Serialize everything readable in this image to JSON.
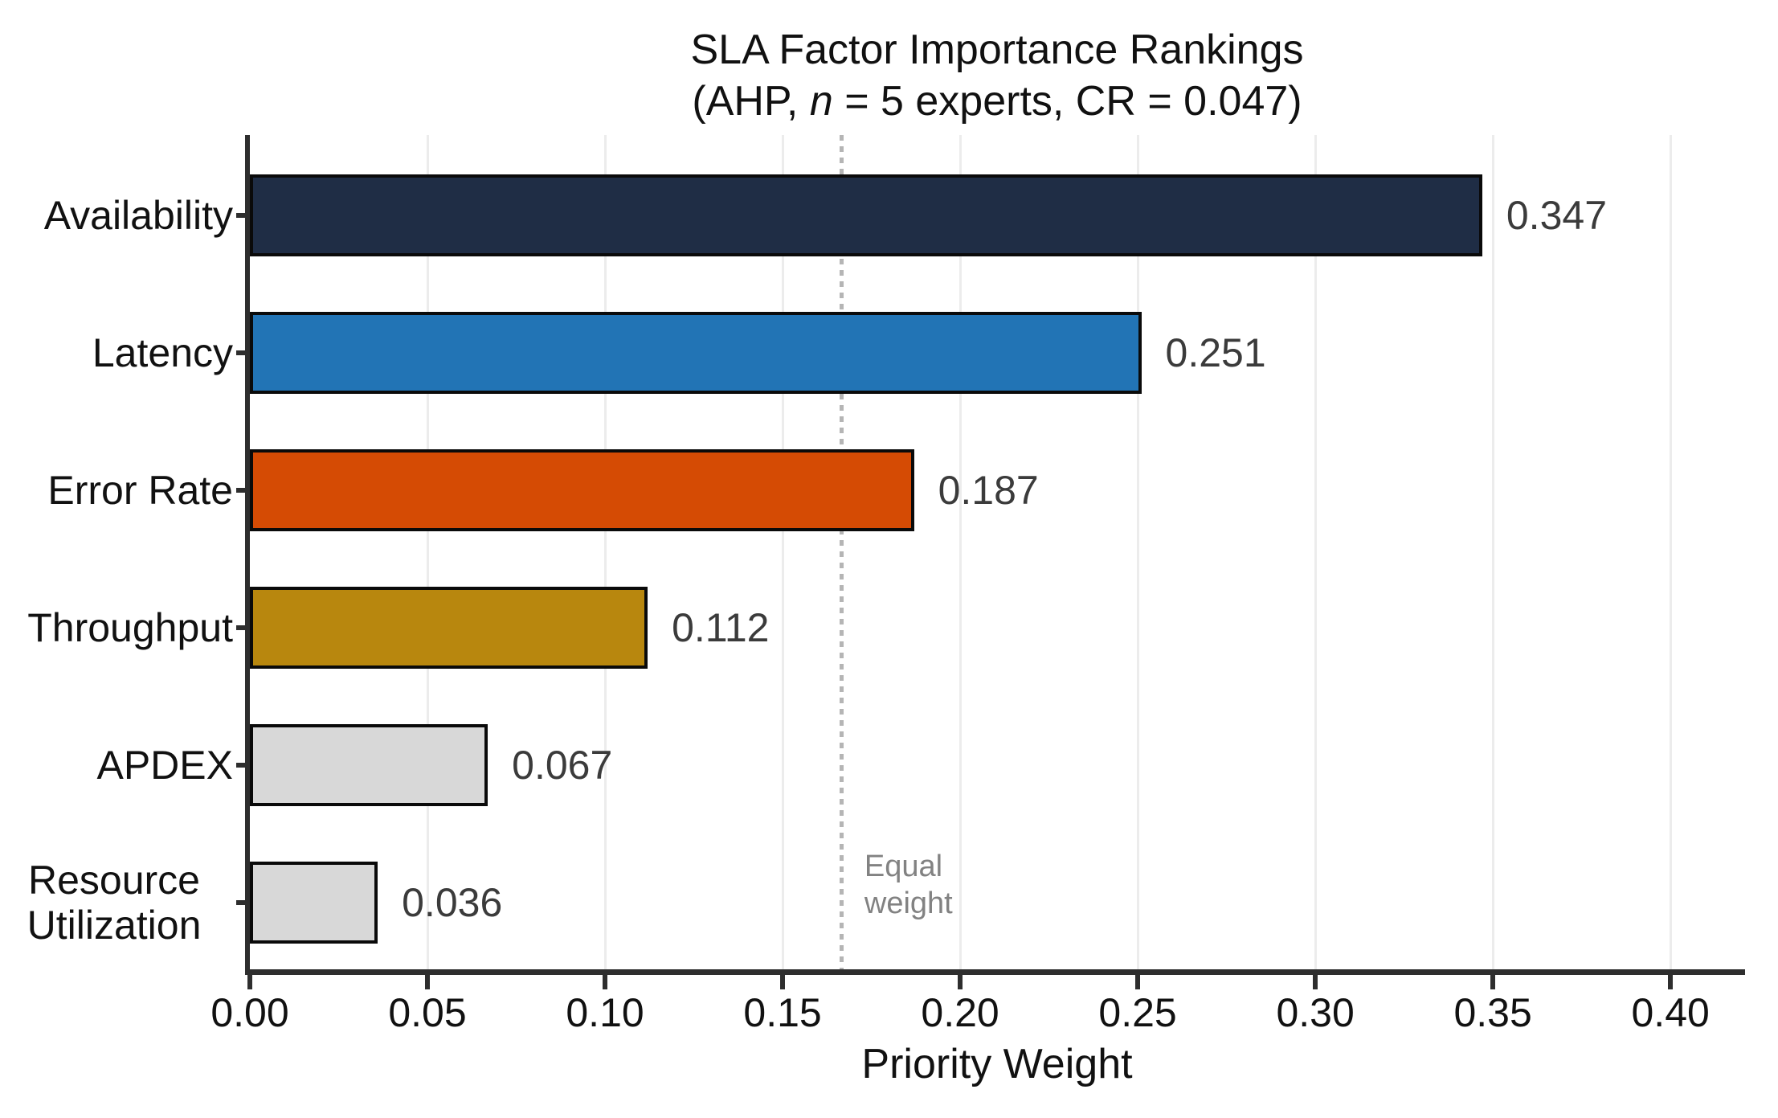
{
  "title": {
    "line1": "SLA Factor Importance Rankings",
    "sub_prefix": "(AHP, ",
    "sub_italic": "n",
    "sub_suffix": " = 5 experts, CR = 0.047)"
  },
  "chart_data": {
    "type": "bar",
    "orientation": "horizontal",
    "title": "SLA Factor Importance Rankings (AHP, n = 5 experts, CR = 0.047)",
    "xlabel": "Priority Weight",
    "categories": [
      "Availability",
      "Latency",
      "Error Rate",
      "Throughput",
      "APDEX",
      "Resource Utilization"
    ],
    "values": [
      0.347,
      0.251,
      0.187,
      0.112,
      0.067,
      0.036
    ],
    "value_labels": [
      "0.347",
      "0.251",
      "0.187",
      "0.112",
      "0.067",
      "0.036"
    ],
    "bar_colors": [
      "#1f2d45",
      "#2274b5",
      "#d54b04",
      "#b8870e",
      "#d8d8d8",
      "#d8d8d8"
    ],
    "bar_edge_color": "#0a0a0a",
    "xlim": [
      0,
      0.421
    ],
    "xticks": [
      0.0,
      0.05,
      0.1,
      0.15,
      0.2,
      0.25,
      0.3,
      0.35,
      0.4
    ],
    "xtick_labels": [
      "0.00",
      "0.05",
      "0.10",
      "0.15",
      "0.20",
      "0.25",
      "0.30",
      "0.35",
      "0.40"
    ],
    "grid": true,
    "legend": "none",
    "reference_line": {
      "value": 0.1667,
      "label": "Equal weight",
      "color": "#b5b5b5",
      "style": "dotted"
    }
  },
  "colors": {
    "background": "#ffffff",
    "grid": "#ececec",
    "spine": "#2e2e2e",
    "value_label": "#3b3b3b",
    "annotation_text": "#828282"
  }
}
